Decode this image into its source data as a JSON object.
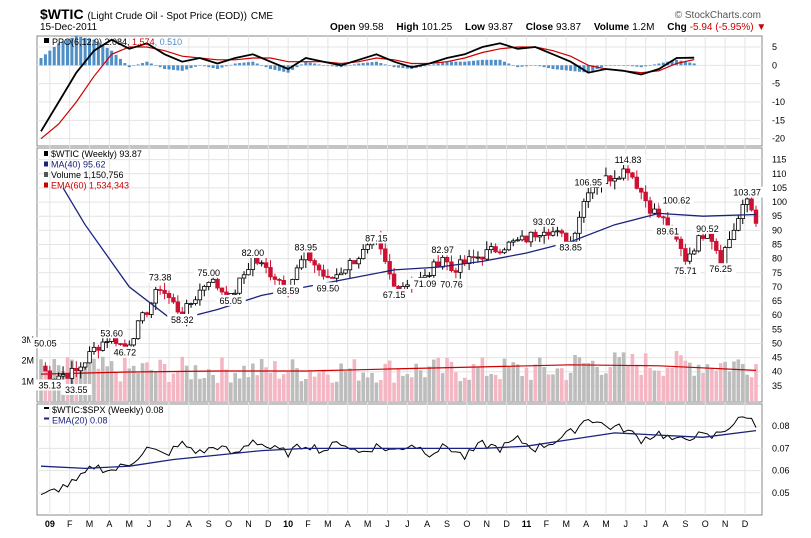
{
  "header": {
    "symbol": "$WTIC",
    "description": "(Light Crude Oil - Spot Price (EOD))",
    "exchange": "CME",
    "brand": "© StockCharts.com",
    "date": "15-Dec-2011",
    "open_label": "Open",
    "open": "99.58",
    "high_label": "High",
    "high": "101.25",
    "low_label": "Low",
    "low": "93.87",
    "close_label": "Close",
    "close": "93.87",
    "volume_label": "Volume",
    "volume": "1.2M",
    "chg_label": "Chg",
    "chg": "-5.94 (-5.95%)"
  },
  "colors": {
    "up": "#000000",
    "down": "#cc1133",
    "ma": "#1a237e",
    "ema": "#cc0000",
    "vol_up": "#bdbdbd",
    "vol_down": "#f4b6c2",
    "ppo_hist": "#4f8fc8"
  },
  "chart_data": [
    {
      "type": "line",
      "title": "PPO(6,12,9)",
      "legend": [
        "PPO(6,12,9) 2.084",
        "1.574",
        "0.510"
      ],
      "ppo_value": "2.084",
      "signal_value": "1.574",
      "hist_value": "0.510",
      "ylim": [
        -22,
        8
      ],
      "yticks": [
        "5",
        "0",
        "-5",
        "-10",
        "-15",
        "-20"
      ],
      "series": [
        {
          "name": "PPO",
          "x": [
            0,
            4,
            8,
            12,
            16,
            20,
            24,
            28,
            32,
            36,
            40,
            44,
            48,
            52,
            56,
            60,
            64,
            68,
            72,
            76,
            80,
            84,
            88,
            92,
            96,
            100,
            104,
            108,
            112,
            116,
            120,
            124,
            128,
            132,
            136,
            140,
            144,
            148
          ],
          "values": [
            -18,
            -10,
            -2,
            4,
            7,
            4.5,
            6,
            3,
            1,
            2,
            0.5,
            2,
            3,
            1,
            -1,
            2,
            1,
            0,
            1.5,
            3,
            1,
            -0.5,
            0.5,
            2,
            3,
            5,
            6,
            4.5,
            5,
            3,
            1,
            -2,
            -1,
            -1.5,
            -2.5,
            -1,
            2,
            2.084
          ]
        },
        {
          "name": "Signal",
          "x": [
            0,
            4,
            8,
            12,
            16,
            20,
            24,
            28,
            32,
            36,
            40,
            44,
            48,
            52,
            56,
            60,
            64,
            68,
            72,
            76,
            80,
            84,
            88,
            92,
            96,
            100,
            104,
            108,
            112,
            116,
            120,
            124,
            128,
            132,
            136,
            140,
            144,
            148
          ],
          "values": [
            -20,
            -16,
            -10,
            -3,
            3,
            5,
            5,
            4,
            2.5,
            2,
            1.5,
            1.5,
            2,
            2,
            1,
            1,
            1,
            0.5,
            1,
            2,
            1.5,
            0.5,
            0.5,
            1,
            2,
            3.5,
            4.5,
            5,
            5,
            4,
            2.5,
            0,
            -1,
            -1.5,
            -2,
            -1.5,
            0.5,
            1.574
          ]
        }
      ]
    },
    {
      "type": "bar",
      "title": "$WTIC (Weekly) 93.87",
      "legend": [
        "$WTIC (Weekly) 93.87",
        "MA(40) 95.62",
        "Volume 1,150,756",
        "EMA(60) 1,534,343"
      ],
      "ylim": [
        30,
        117
      ],
      "yticks": [
        "115",
        "110",
        "105",
        "100",
        "95",
        "90",
        "85",
        "80",
        "75",
        "70",
        "65",
        "60",
        "55",
        "50",
        "45",
        "40",
        "35"
      ],
      "volume_ticks": [
        "3M",
        "2M",
        "1M"
      ],
      "annotations": [
        {
          "label": "50.05",
          "x": 1,
          "y": 50.05
        },
        {
          "label": "35.13",
          "x": 2,
          "y": 35.13
        },
        {
          "label": "33.55",
          "x": 8,
          "y": 33.55
        },
        {
          "label": "53.60",
          "x": 16,
          "y": 53.6
        },
        {
          "label": "46.72",
          "x": 19,
          "y": 46.72
        },
        {
          "label": "73.38",
          "x": 27,
          "y": 73.38
        },
        {
          "label": "58.32",
          "x": 32,
          "y": 58.32
        },
        {
          "label": "75.00",
          "x": 38,
          "y": 75.0
        },
        {
          "label": "65.05",
          "x": 43,
          "y": 65.05
        },
        {
          "label": "82.00",
          "x": 48,
          "y": 82.0
        },
        {
          "label": "68.59",
          "x": 56,
          "y": 68.59
        },
        {
          "label": "83.95",
          "x": 60,
          "y": 83.95
        },
        {
          "label": "69.50",
          "x": 65,
          "y": 69.5
        },
        {
          "label": "87.15",
          "x": 76,
          "y": 87.15
        },
        {
          "label": "67.15",
          "x": 80,
          "y": 67.15
        },
        {
          "label": "71.09",
          "x": 87,
          "y": 71.09
        },
        {
          "label": "82.97",
          "x": 91,
          "y": 82.97
        },
        {
          "label": "70.76",
          "x": 93,
          "y": 70.76
        },
        {
          "label": "93.02",
          "x": 114,
          "y": 93.02
        },
        {
          "label": "83.85",
          "x": 120,
          "y": 83.85
        },
        {
          "label": "106.95",
          "x": 124,
          "y": 106.95
        },
        {
          "label": "114.83",
          "x": 133,
          "y": 114.83
        },
        {
          "label": "100.62",
          "x": 144,
          "y": 100.62
        },
        {
          "label": "89.61",
          "x": 142,
          "y": 89.61
        },
        {
          "label": "75.71",
          "x": 146,
          "y": 75.71
        },
        {
          "label": "90.52",
          "x": 151,
          "y": 90.52
        },
        {
          "label": "76.25",
          "x": 154,
          "y": 76.25
        },
        {
          "label": "103.37",
          "x": 160,
          "y": 103.37
        }
      ],
      "anchors_x": [
        0,
        2,
        8,
        12,
        16,
        19,
        27,
        32,
        38,
        43,
        48,
        56,
        60,
        65,
        76,
        80,
        87,
        91,
        93,
        98,
        104,
        110,
        114,
        120,
        124,
        133,
        138,
        142,
        146,
        151,
        154,
        160,
        162
      ],
      "anchors_close": [
        42,
        38,
        40,
        48,
        53,
        48,
        70,
        60,
        73,
        66,
        80,
        70,
        82,
        72,
        86,
        70,
        73,
        81,
        76,
        80,
        84,
        87,
        91,
        86,
        105,
        112,
        98,
        92,
        80,
        91,
        80,
        101,
        94
      ],
      "ma40": {
        "x": [
          5,
          10,
          20,
          30,
          40,
          50,
          60,
          70,
          80,
          90,
          100,
          110,
          120,
          130,
          140,
          150,
          162
        ],
        "values": [
          105,
          92,
          70,
          58,
          62,
          67,
          70,
          73,
          76,
          77,
          79,
          82,
          86,
          92,
          96,
          95,
          95.62
        ]
      },
      "volume_ema60": {
        "x": [
          0,
          20,
          40,
          60,
          80,
          100,
          120,
          140,
          162
        ],
        "values": [
          1.35,
          1.45,
          1.5,
          1.5,
          1.6,
          1.7,
          1.8,
          1.75,
          1.53
        ]
      }
    },
    {
      "type": "line",
      "title": "$WTIC:$SPX (Weekly) 0.08",
      "legend": [
        "$WTIC:$SPX (Weekly) 0.08",
        "EMA(20) 0.08"
      ],
      "ylim": [
        0.04,
        0.09
      ],
      "yticks": [
        "0.08",
        "0.07",
        "0.06",
        "0.05"
      ],
      "series": [
        {
          "name": "Ratio",
          "x": [
            0,
            4,
            8,
            12,
            16,
            20,
            24,
            28,
            32,
            36,
            40,
            44,
            48,
            52,
            56,
            60,
            64,
            68,
            72,
            76,
            80,
            84,
            88,
            92,
            96,
            100,
            104,
            108,
            112,
            116,
            120,
            124,
            128,
            132,
            136,
            140,
            144,
            148,
            152,
            156,
            160,
            162
          ],
          "values": [
            0.048,
            0.052,
            0.055,
            0.062,
            0.06,
            0.063,
            0.07,
            0.067,
            0.072,
            0.068,
            0.071,
            0.067,
            0.074,
            0.07,
            0.068,
            0.072,
            0.069,
            0.073,
            0.068,
            0.071,
            0.069,
            0.072,
            0.068,
            0.071,
            0.066,
            0.072,
            0.07,
            0.074,
            0.07,
            0.073,
            0.077,
            0.084,
            0.08,
            0.079,
            0.074,
            0.077,
            0.073,
            0.076,
            0.075,
            0.08,
            0.085,
            0.08
          ]
        },
        {
          "name": "EMA(20)",
          "x": [
            0,
            10,
            20,
            30,
            40,
            50,
            60,
            70,
            80,
            90,
            100,
            110,
            120,
            130,
            140,
            150,
            162
          ],
          "values": [
            0.062,
            0.061,
            0.062,
            0.065,
            0.067,
            0.069,
            0.07,
            0.07,
            0.07,
            0.07,
            0.07,
            0.071,
            0.074,
            0.077,
            0.076,
            0.075,
            0.078
          ]
        }
      ]
    }
  ],
  "xaxis": {
    "labels": [
      "09",
      "F",
      "M",
      "A",
      "M",
      "J",
      "J",
      "A",
      "S",
      "O",
      "N",
      "D",
      "10",
      "F",
      "M",
      "A",
      "M",
      "J",
      "J",
      "A",
      "S",
      "O",
      "N",
      "D",
      "11",
      "F",
      "M",
      "A",
      "M",
      "J",
      "J",
      "A",
      "S",
      "O",
      "N",
      "D"
    ],
    "bold": [
      "09",
      "10",
      "11"
    ]
  }
}
